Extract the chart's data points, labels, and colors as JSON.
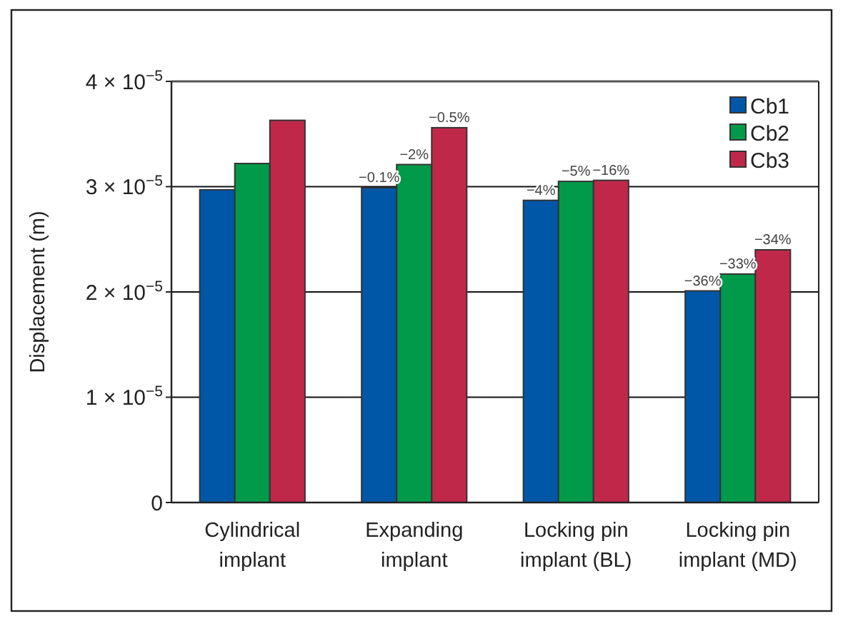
{
  "chart_data": {
    "type": "bar",
    "ylabel": "Displacement (m)",
    "categories": [
      "Cylindrical implant",
      "Expanding implant",
      "Locking pin implant (BL)",
      "Locking pin implant (MD)"
    ],
    "series": [
      {
        "name": "Cb1",
        "color": "#0057a8",
        "values": [
          2.97e-05,
          2.99e-05,
          2.87e-05,
          2.01e-05
        ]
      },
      {
        "name": "Cb2",
        "color": "#009a4a",
        "values": [
          3.22e-05,
          3.21e-05,
          3.05e-05,
          2.17e-05
        ]
      },
      {
        "name": "Cb3",
        "color": "#c0284a",
        "values": [
          3.63e-05,
          3.56e-05,
          3.06e-05,
          2.4e-05
        ]
      }
    ],
    "annotations": [
      "−0.1%",
      "−2%",
      "−0.5%",
      "−4%",
      "−5%",
      "−16%",
      "−36%",
      "−33%",
      "−34%"
    ],
    "ylim": [
      0,
      4e-05
    ],
    "yticks": [
      0,
      {
        "value": 1e-05,
        "label": "1 × 10$^{−5}$"
      },
      {
        "value": 2e-05,
        "label": "2 × 10$^{−5}$"
      },
      {
        "value": 3e-05,
        "label": "3 × 10$^{−5}$"
      },
      {
        "value": 4e-05,
        "label": "4 × 10$^{−5}$"
      }
    ],
    "grid": "y",
    "legend": "top right"
  }
}
